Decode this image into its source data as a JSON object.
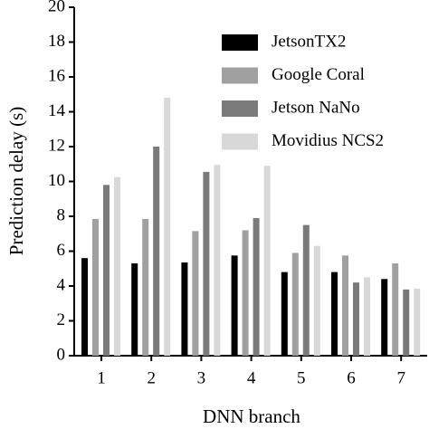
{
  "chart_data": {
    "type": "bar",
    "x_label": "DNN branch",
    "y_label": "Prediction delay (s)",
    "categories": [
      "1",
      "2",
      "3",
      "4",
      "5",
      "6",
      "7"
    ],
    "series": [
      {
        "name": "JetsonTX2",
        "color": "#000000",
        "values": [
          5.6,
          5.3,
          5.35,
          5.75,
          4.8,
          4.8,
          4.4
        ]
      },
      {
        "name": "Google Coral",
        "color": "#a0a0a0",
        "values": [
          7.85,
          7.85,
          7.15,
          7.2,
          5.9,
          5.75,
          5.3
        ]
      },
      {
        "name": "Jetson NaNo",
        "color": "#7a7a7a",
        "values": [
          9.8,
          12.0,
          10.55,
          7.9,
          7.5,
          4.2,
          3.8
        ]
      },
      {
        "name": "Movidius NCS2",
        "color": "#d8d8d8",
        "values": [
          10.25,
          14.8,
          10.95,
          10.9,
          6.3,
          4.5,
          3.85
        ]
      }
    ],
    "ylim": [
      0,
      20
    ],
    "yticks": [
      0,
      2,
      4,
      6,
      8,
      10,
      12,
      14,
      16,
      18,
      20
    ],
    "legend": "upper right"
  }
}
